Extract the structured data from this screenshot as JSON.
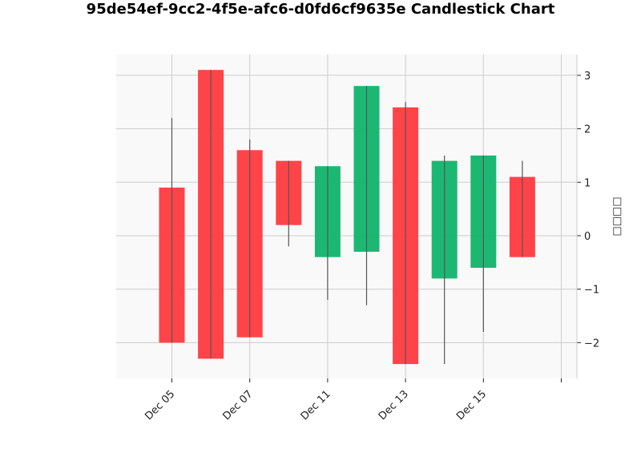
{
  "chart_data": {
    "type": "candlestick",
    "title": "95de54ef-9cc2-4f5e-afc6-d0fd6cf9635e Candlestick Chart",
    "xlabel": "",
    "ylabel": "□□□□",
    "ylim": [
      -2.7,
      3.4
    ],
    "yticks": [
      -2,
      -1,
      0,
      1,
      2,
      3
    ],
    "grid": true,
    "x_tick_labels": [
      "Dec 05",
      "Dec 07",
      "Dec 11",
      "Dec 13",
      "Dec 15",
      ""
    ],
    "candles": [
      {
        "open": 0.9,
        "close": -2.0,
        "high": 2.2,
        "low": -2.0
      },
      {
        "open": 3.1,
        "close": -2.3,
        "high": 3.1,
        "low": -2.3
      },
      {
        "open": 1.6,
        "close": -1.9,
        "high": 1.8,
        "low": -1.9
      },
      {
        "open": 1.4,
        "close": 0.2,
        "high": 1.4,
        "low": -0.2
      },
      {
        "open": -0.4,
        "close": 1.3,
        "high": 1.3,
        "low": -1.2
      },
      {
        "open": -0.3,
        "close": 2.8,
        "high": 2.8,
        "low": -1.3
      },
      {
        "open": 2.4,
        "close": -2.4,
        "high": 2.5,
        "low": -2.4
      },
      {
        "open": -0.8,
        "close": 1.4,
        "high": 1.5,
        "low": -2.4
      },
      {
        "open": -0.6,
        "close": 1.5,
        "high": 1.5,
        "low": -1.8
      },
      {
        "open": 1.1,
        "close": -0.4,
        "high": 1.4,
        "low": -0.4
      }
    ],
    "colors": {
      "up": "#10b46c",
      "down": "#ff3a3f",
      "wick": "#555555",
      "grid": "#cccccc",
      "plot_bg": "#f9f9f9"
    }
  }
}
